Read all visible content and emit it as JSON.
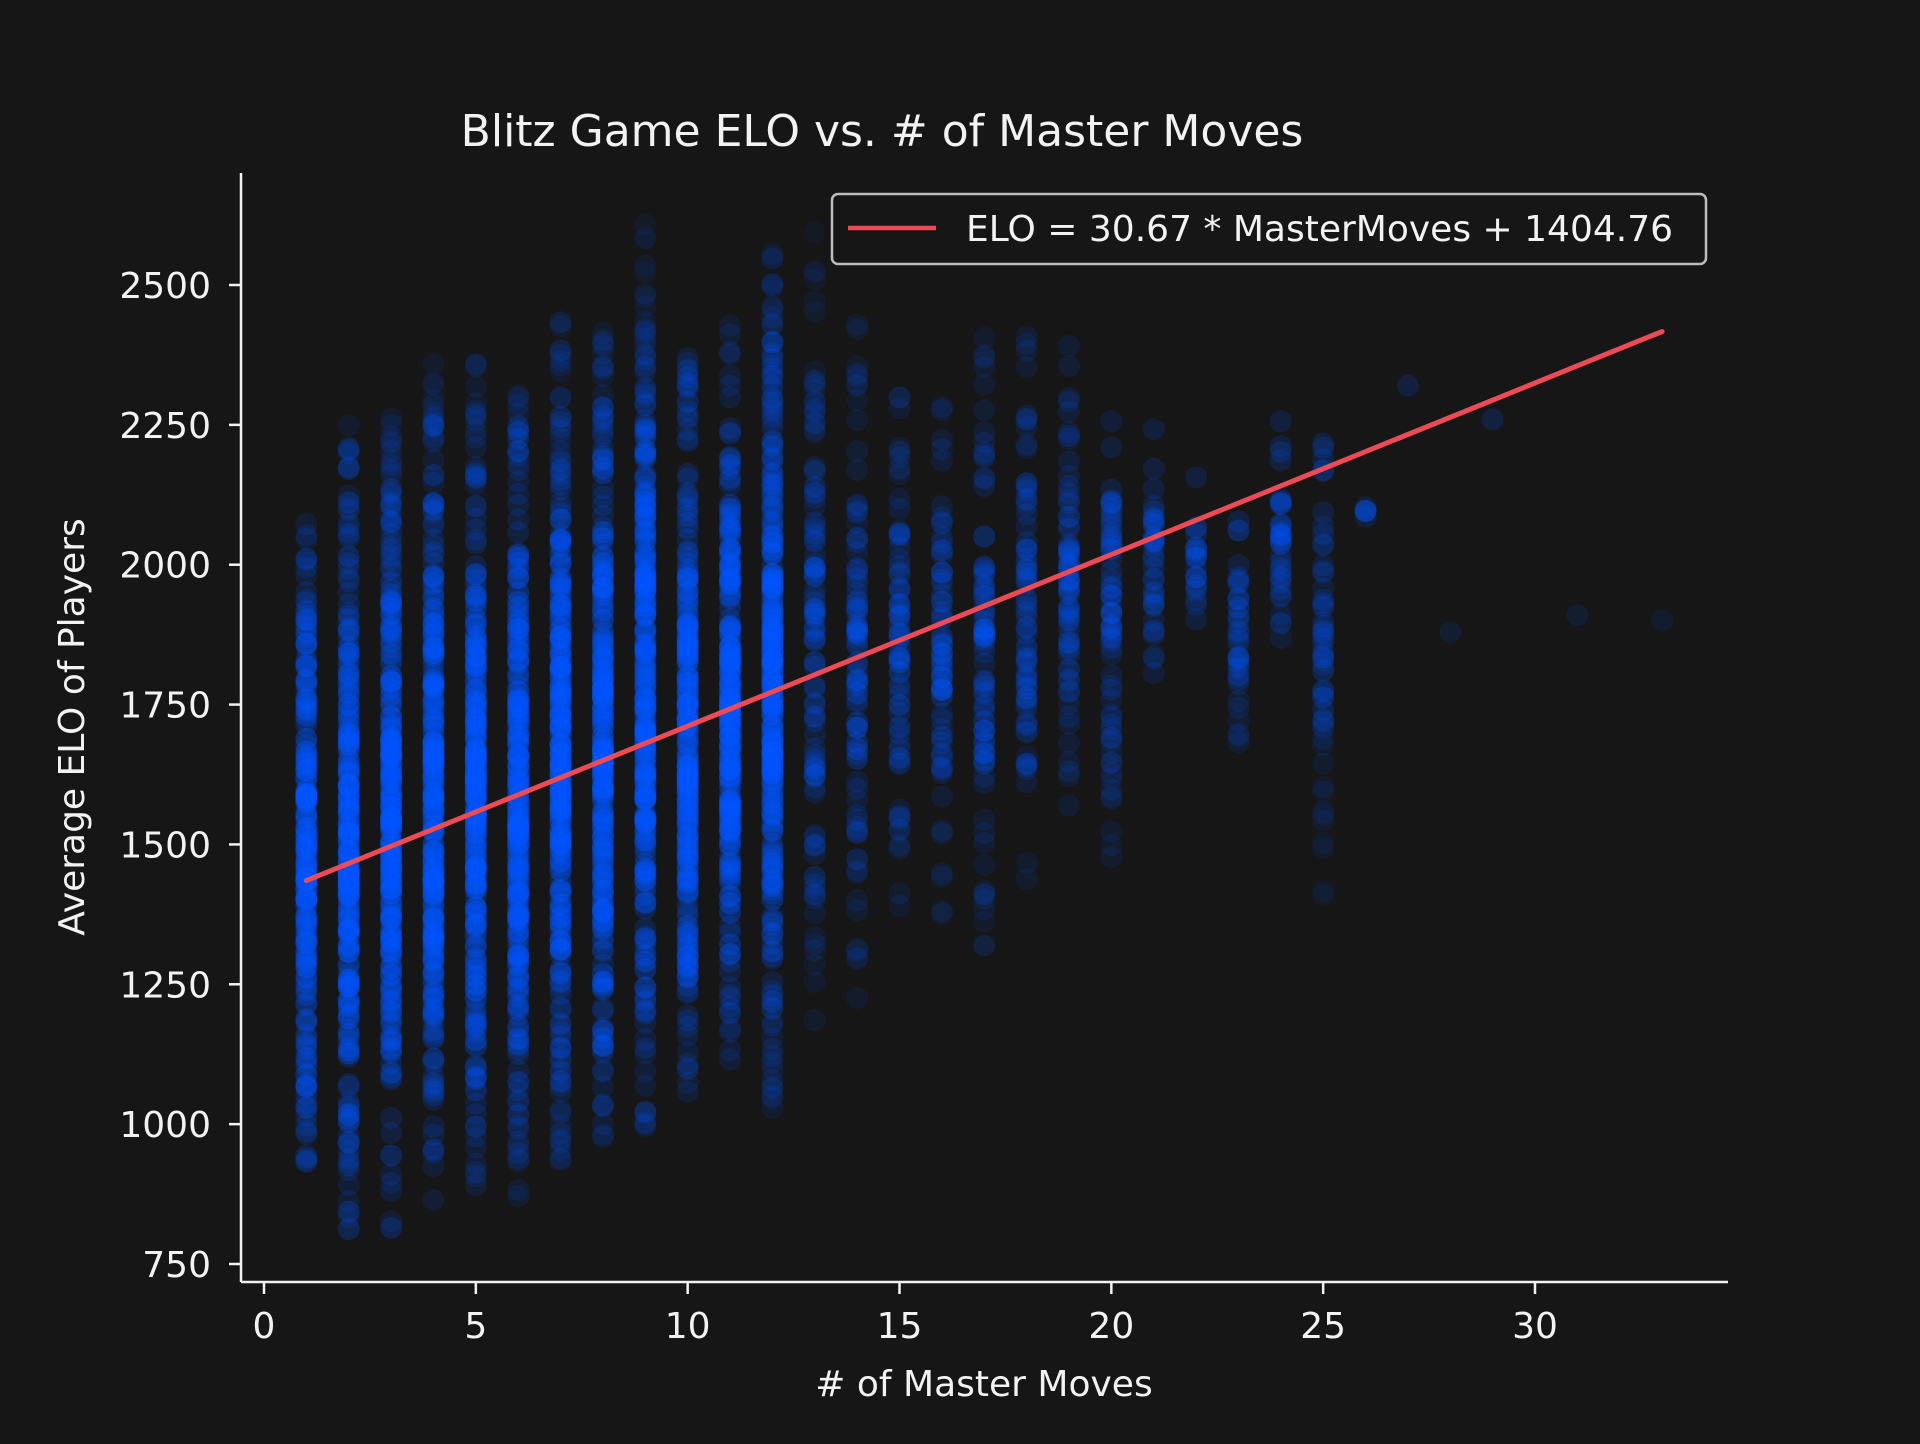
{
  "chart_data": {
    "type": "scatter",
    "title": "Blitz Game ELO vs. # of Master Moves",
    "xlabel": "# of Master Moves",
    "ylabel": "Average ELO of Players",
    "xlim": [
      -1.1,
      34.1
    ],
    "ylim": [
      720,
      2690
    ],
    "xticks": [
      0,
      5,
      10,
      15,
      20,
      25,
      30
    ],
    "yticks": [
      750,
      1000,
      1250,
      1500,
      1750,
      2000,
      2250,
      2500
    ],
    "grid": false,
    "legend_position": "top-right",
    "series": [
      {
        "kind": "scatter",
        "color": "#0055ff",
        "column_ranges": [
          {
            "x": 1,
            "ymin": 930,
            "ymax": 2100
          },
          {
            "x": 2,
            "ymin": 810,
            "ymax": 2250
          },
          {
            "x": 3,
            "ymin": 810,
            "ymax": 2280
          },
          {
            "x": 4,
            "ymin": 860,
            "ymax": 2370
          },
          {
            "x": 5,
            "ymin": 880,
            "ymax": 2360
          },
          {
            "x": 6,
            "ymin": 870,
            "ymax": 2340
          },
          {
            "x": 7,
            "ymin": 910,
            "ymax": 2450
          },
          {
            "x": 8,
            "ymin": 960,
            "ymax": 2430
          },
          {
            "x": 9,
            "ymin": 980,
            "ymax": 2610
          },
          {
            "x": 10,
            "ymin": 1020,
            "ymax": 2380
          },
          {
            "x": 11,
            "ymin": 1100,
            "ymax": 2450
          },
          {
            "x": 12,
            "ymin": 1020,
            "ymax": 2560
          },
          {
            "x": 13,
            "ymin": 1130,
            "ymax": 2610
          },
          {
            "x": 14,
            "ymin": 1220,
            "ymax": 2440
          },
          {
            "x": 15,
            "ymin": 1340,
            "ymax": 2300
          },
          {
            "x": 16,
            "ymin": 1360,
            "ymax": 2320
          },
          {
            "x": 17,
            "ymin": 1260,
            "ymax": 2420
          },
          {
            "x": 18,
            "ymin": 1420,
            "ymax": 2420
          },
          {
            "x": 19,
            "ymin": 1530,
            "ymax": 2460
          },
          {
            "x": 20,
            "ymin": 1470,
            "ymax": 2370
          },
          {
            "x": 21,
            "ymin": 1780,
            "ymax": 2250
          },
          {
            "x": 22,
            "ymin": 1870,
            "ymax": 2160
          },
          {
            "x": 23,
            "ymin": 1630,
            "ymax": 2170
          },
          {
            "x": 24,
            "ymin": 1800,
            "ymax": 2290
          },
          {
            "x": 25,
            "ymin": 1410,
            "ymax": 2240
          },
          {
            "x": 26,
            "ymin": 2080,
            "ymax": 2110
          },
          {
            "x": 27,
            "ymin": 2320,
            "ymax": 2320
          },
          {
            "x": 28,
            "ymin": 1880,
            "ymax": 1880
          },
          {
            "x": 29,
            "ymin": 2260,
            "ymax": 2260
          },
          {
            "x": 31,
            "ymin": 1910,
            "ymax": 1910
          },
          {
            "x": 33,
            "ymin": 1900,
            "ymax": 1900
          }
        ]
      },
      {
        "kind": "line",
        "name": "ELO = 30.67 * MasterMoves + 1404.76",
        "color": "#ee4a55",
        "slope": 30.67,
        "intercept": 1404.76,
        "x": [
          1,
          33
        ]
      }
    ]
  }
}
